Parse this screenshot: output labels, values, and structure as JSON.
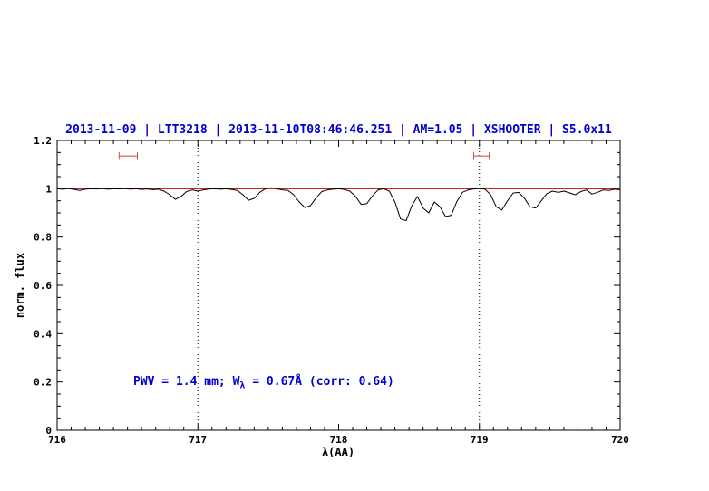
{
  "colors": {
    "background": "#ffffff",
    "axis": "#000000",
    "title": "#0000cd",
    "annotation": "#0000cd",
    "spectrum": "#000000",
    "continuum": "#cc0000",
    "marker": "#cc4444",
    "vline": "#000000"
  },
  "chart_data": {
    "type": "line",
    "title": "2013-11-09 | LTT3218 | 2013-11-10T08:46:46.251 | AM=1.05 | XSHOOTER | S5.0x11",
    "xlabel": "λ(AA)",
    "ylabel": "norm. flux",
    "xlim": [
      716,
      720
    ],
    "ylim": [
      0,
      1.2
    ],
    "x_major_ticks": [
      716,
      717,
      718,
      719,
      720
    ],
    "x_tick_labels": [
      "716",
      "717",
      "718",
      "719",
      "720"
    ],
    "x_minor_step": 0.1,
    "y_major_ticks": [
      0,
      0.2,
      0.4,
      0.6,
      0.8,
      1,
      1.2
    ],
    "y_tick_labels": [
      "0",
      "0.2",
      "0.4",
      "0.6",
      "0.8",
      "1",
      "1.2"
    ],
    "y_minor_step": 0.05,
    "grid": "off",
    "legend": "none",
    "vlines": {
      "x": [
        717,
        719
      ],
      "style": "dotted",
      "color": "#000000",
      "y1": 0,
      "y2": 1.2
    },
    "markers": [
      {
        "name": "line-range-marker-left",
        "x1": 716.44,
        "x2": 716.57,
        "y": 1.136,
        "cap": 0.016,
        "color": "#cc4444"
      },
      {
        "name": "line-range-marker-right",
        "x1": 718.96,
        "x2": 719.07,
        "y": 1.136,
        "cap": 0.016,
        "color": "#cc4444"
      }
    ],
    "annotation": {
      "prefix": "PWV = 1.4 mm; W",
      "sub": "λ",
      "suffix": " = 0.67Å (corr: 0.64)",
      "x": 716.54,
      "y": 0.2,
      "color": "#0000cd"
    },
    "series": [
      {
        "name": "continuum-fit",
        "color": "#cc0000",
        "x": [
          716,
          720
        ],
        "y": [
          1,
          1
        ]
      },
      {
        "name": "observed-spectrum",
        "color": "#000000",
        "x": [
          716.0,
          716.04,
          716.08,
          716.12,
          716.16,
          716.2,
          716.24,
          716.28,
          716.32,
          716.36,
          716.4,
          716.44,
          716.48,
          716.52,
          716.56,
          716.6,
          716.64,
          716.68,
          716.72,
          716.76,
          716.8,
          716.84,
          716.88,
          716.92,
          716.96,
          717.0,
          717.04,
          717.08,
          717.12,
          717.16,
          717.2,
          717.24,
          717.28,
          717.32,
          717.36,
          717.4,
          717.44,
          717.48,
          717.52,
          717.56,
          717.6,
          717.64,
          717.68,
          717.72,
          717.76,
          717.8,
          717.84,
          717.88,
          717.92,
          717.96,
          718.0,
          718.04,
          718.08,
          718.12,
          718.16,
          718.2,
          718.24,
          718.28,
          718.32,
          718.36,
          718.4,
          718.44,
          718.48,
          718.52,
          718.56,
          718.6,
          718.64,
          718.68,
          718.72,
          718.76,
          718.8,
          718.84,
          718.88,
          718.92,
          718.96,
          719.0,
          719.04,
          719.08,
          719.12,
          719.16,
          719.2,
          719.24,
          719.28,
          719.32,
          719.36,
          719.4,
          719.44,
          719.48,
          719.52,
          719.56,
          719.6,
          719.64,
          719.68,
          719.72,
          719.76,
          719.8,
          719.84,
          719.88,
          719.92,
          719.96,
          720.0
        ],
        "y": [
          1.0,
          0.998,
          1.001,
          0.997,
          0.993,
          0.998,
          1.0,
          0.999,
          1.001,
          0.998,
          1.0,
          0.999,
          1.001,
          0.998,
          1.0,
          0.997,
          0.999,
          0.996,
          0.998,
          0.99,
          0.975,
          0.956,
          0.968,
          0.988,
          0.995,
          0.99,
          0.995,
          0.999,
          1.0,
          0.998,
          1.0,
          0.997,
          0.993,
          0.975,
          0.952,
          0.96,
          0.985,
          1.0,
          1.004,
          1.0,
          0.995,
          0.993,
          0.975,
          0.945,
          0.922,
          0.93,
          0.962,
          0.988,
          0.995,
          0.998,
          1.0,
          0.997,
          0.99,
          0.968,
          0.935,
          0.938,
          0.97,
          0.995,
          1.0,
          0.99,
          0.945,
          0.875,
          0.868,
          0.93,
          0.968,
          0.92,
          0.9,
          0.945,
          0.925,
          0.885,
          0.89,
          0.947,
          0.985,
          0.995,
          0.999,
          1.001,
          0.998,
          0.975,
          0.925,
          0.912,
          0.95,
          0.982,
          0.985,
          0.96,
          0.925,
          0.92,
          0.95,
          0.98,
          0.99,
          0.985,
          0.99,
          0.983,
          0.975,
          0.988,
          0.995,
          0.978,
          0.985,
          0.995,
          0.993,
          0.998,
          0.996
        ]
      }
    ]
  }
}
